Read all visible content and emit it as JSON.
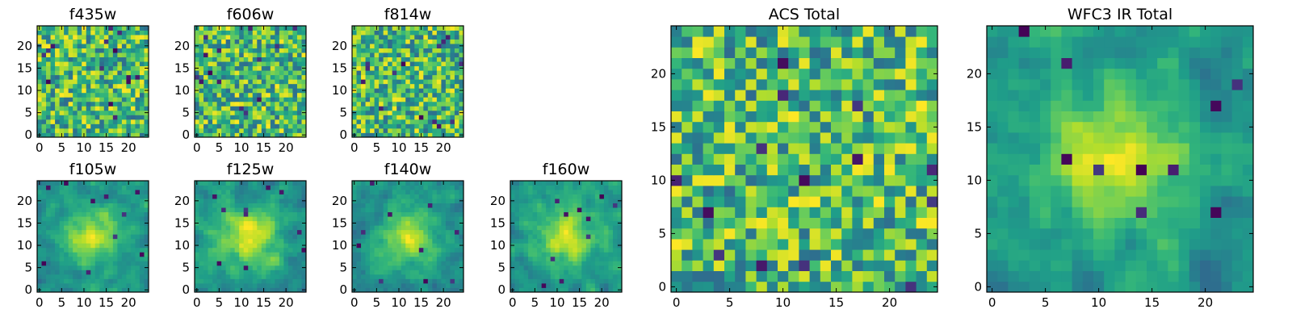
{
  "chart_data": [
    {
      "type": "heatmap",
      "title": "f435w",
      "colormap": "viridis",
      "grid_size": 25,
      "xticks": [
        0,
        5,
        10,
        15,
        20
      ],
      "yticks": [
        0,
        5,
        10,
        15,
        20
      ],
      "xlim": [
        -0.5,
        24.5
      ],
      "ylim": [
        -0.5,
        24.5
      ],
      "pattern": "noise",
      "seed": 11
    },
    {
      "type": "heatmap",
      "title": "f606w",
      "colormap": "viridis",
      "grid_size": 25,
      "xticks": [
        0,
        5,
        10,
        15,
        20
      ],
      "yticks": [
        0,
        5,
        10,
        15,
        20
      ],
      "xlim": [
        -0.5,
        24.5
      ],
      "ylim": [
        -0.5,
        24.5
      ],
      "pattern": "noise",
      "seed": 23
    },
    {
      "type": "heatmap",
      "title": "f814w",
      "colormap": "viridis",
      "grid_size": 25,
      "xticks": [
        0,
        5,
        10,
        15,
        20
      ],
      "yticks": [
        0,
        5,
        10,
        15,
        20
      ],
      "xlim": [
        -0.5,
        24.5
      ],
      "ylim": [
        -0.5,
        24.5
      ],
      "pattern": "noise",
      "seed": 37
    },
    {
      "type": "heatmap",
      "title": "f105w",
      "colormap": "viridis",
      "grid_size": 25,
      "xticks": [
        0,
        5,
        10,
        15,
        20
      ],
      "yticks": [
        0,
        5,
        10,
        15,
        20
      ],
      "xlim": [
        -0.5,
        24.5
      ],
      "ylim": [
        -0.5,
        24.5
      ],
      "pattern": "source",
      "seed": 41
    },
    {
      "type": "heatmap",
      "title": "f125w",
      "colormap": "viridis",
      "grid_size": 25,
      "xticks": [
        0,
        5,
        10,
        15,
        20
      ],
      "yticks": [
        0,
        5,
        10,
        15,
        20
      ],
      "xlim": [
        -0.5,
        24.5
      ],
      "ylim": [
        -0.5,
        24.5
      ],
      "pattern": "source",
      "seed": 53
    },
    {
      "type": "heatmap",
      "title": "f140w",
      "colormap": "viridis",
      "grid_size": 25,
      "xticks": [
        0,
        5,
        10,
        15,
        20
      ],
      "yticks": [
        0,
        5,
        10,
        15,
        20
      ],
      "xlim": [
        -0.5,
        24.5
      ],
      "ylim": [
        -0.5,
        24.5
      ],
      "pattern": "source",
      "seed": 67
    },
    {
      "type": "heatmap",
      "title": "f160w",
      "colormap": "viridis",
      "grid_size": 25,
      "xticks": [
        0,
        5,
        10,
        15,
        20
      ],
      "yticks": [
        0,
        5,
        10,
        15,
        20
      ],
      "xlim": [
        -0.5,
        24.5
      ],
      "ylim": [
        -0.5,
        24.5
      ],
      "pattern": "source",
      "seed": 79
    },
    {
      "type": "heatmap",
      "title": "ACS Total",
      "colormap": "viridis",
      "grid_size": 25,
      "xticks": [
        0,
        5,
        10,
        15,
        20
      ],
      "yticks": [
        0,
        5,
        10,
        15,
        20
      ],
      "xlim": [
        -0.5,
        24.5
      ],
      "ylim": [
        -0.5,
        24.5
      ],
      "pattern": "noise",
      "seed": 97
    },
    {
      "type": "heatmap",
      "title": "WFC3 IR Total",
      "colormap": "viridis",
      "grid_size": 25,
      "xticks": [
        0,
        5,
        10,
        15,
        20
      ],
      "yticks": [
        0,
        5,
        10,
        15,
        20
      ],
      "xlim": [
        -0.5,
        24.5
      ],
      "ylim": [
        -0.5,
        24.5
      ],
      "pattern": "source",
      "seed": 131
    }
  ]
}
